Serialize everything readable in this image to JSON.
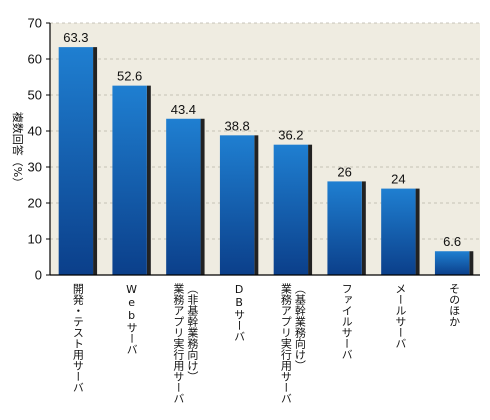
{
  "chart_data": {
    "type": "bar",
    "title": "",
    "xlabel": "",
    "ylabel": "複数回答（%）",
    "ylim": [
      0,
      70
    ],
    "yticks": [
      0,
      10,
      20,
      30,
      40,
      50,
      60,
      70
    ],
    "grid": true,
    "categories": [
      "開発・テスト用サーバ",
      "Webサーバ",
      "業務アプリ実行用サーバ（非基幹業務向け）",
      "DBサーバ",
      "業務アプリ実行用サーバ（基幹業務向け）",
      "ファイルサーバ",
      "メールサーバ",
      "そのほか"
    ],
    "category_lines": [
      [
        "開発・テスト用サーバ"
      ],
      [
        "Webサーバ"
      ],
      [
        "業務アプリ実行用サーバ",
        "（非基幹業務向け）"
      ],
      [
        "DBサーバ"
      ],
      [
        "業務アプリ実行用サーバ",
        "（基幹業務向け）"
      ],
      [
        "ファイルサーバ"
      ],
      [
        "メールサーバ"
      ],
      [
        "そのほか"
      ]
    ],
    "values": [
      63.3,
      52.6,
      43.4,
      38.8,
      36.2,
      26,
      24,
      6.6
    ],
    "value_labels": [
      "63.3",
      "52.6",
      "43.4",
      "38.8",
      "36.2",
      "26",
      "24",
      "6.6"
    ]
  },
  "colors": {
    "plot_background": "#efece1",
    "bar_top": "#1f7fd1",
    "bar_bottom": "#0b3f8a",
    "bar_shadow": "#222222",
    "grid": "#b9b4a6",
    "axis": "#000000"
  }
}
